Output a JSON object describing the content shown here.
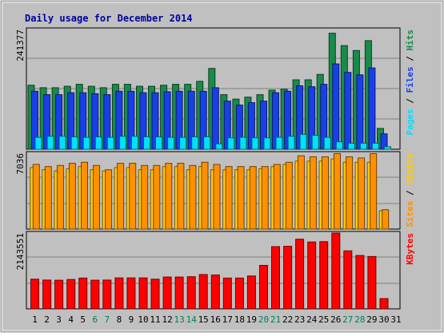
{
  "chart_data": {
    "type": "bar",
    "title": "Daily usage for December 2014",
    "categories": [
      "1",
      "2",
      "3",
      "4",
      "5",
      "6",
      "7",
      "8",
      "9",
      "10",
      "11",
      "12",
      "13",
      "14",
      "15",
      "16",
      "17",
      "18",
      "19",
      "20",
      "21",
      "22",
      "23",
      "24",
      "25",
      "26",
      "27",
      "28",
      "29",
      "30",
      "31"
    ],
    "weekend_days": [
      "6",
      "7",
      "13",
      "14",
      "20",
      "21",
      "27",
      "28"
    ],
    "panels": [
      {
        "id": "hits-files-pages",
        "ymax_label": "241377",
        "ymax": 241377,
        "legend": [
          {
            "text": "Pages",
            "color": "#00e0ff"
          },
          {
            "text": "Files",
            "color": "#1840e8"
          },
          {
            "text": "Hits",
            "color": "#1a8a4a"
          }
        ],
        "series": [
          {
            "name": "Hits",
            "color": "#1a8a4a",
            "values": [
              129000,
              124000,
              124000,
              127000,
              131000,
              127000,
              124000,
              131000,
              131000,
              127000,
              127000,
              129000,
              131000,
              131000,
              137000,
              163000,
              110000,
              101000,
              105000,
              110000,
              119000,
              121000,
              140000,
              140000,
              151000,
              234000,
              209000,
              199000,
              219000,
              42000,
              0
            ]
          },
          {
            "name": "Files",
            "color": "#1840e8",
            "values": [
              117000,
              110000,
              110000,
              114000,
              114000,
              112000,
              110000,
              117000,
              117000,
              114000,
              114000,
              116000,
              117000,
              117000,
              117000,
              124000,
              97000,
              89000,
              94000,
              97000,
              114000,
              117000,
              128000,
              126000,
              131000,
              172000,
              155000,
              150000,
              164000,
              31000,
              0
            ]
          },
          {
            "name": "Pages",
            "color": "#00e0ff",
            "values": [
              24000,
              26000,
              26000,
              25000,
              24000,
              25000,
              24000,
              26000,
              26000,
              25000,
              25000,
              24000,
              24000,
              25000,
              25000,
              11000,
              23000,
              24000,
              23000,
              23000,
              24000,
              26000,
              30000,
              28000,
              24000,
              15000,
              12000,
              12000,
              12000,
              5000,
              0
            ]
          }
        ]
      },
      {
        "id": "visits-sites",
        "ymax_label": "7036",
        "ymax": 7036,
        "legend": [
          {
            "text": "Sites",
            "color": "#ff9000"
          },
          {
            "text": "Visits",
            "color": "#ffcc00"
          }
        ],
        "series": [
          {
            "name": "Visits",
            "color": "#ffcc00",
            "values": [
              5700,
              5500,
              5400,
              5600,
              5800,
              5500,
              5400,
              5700,
              5700,
              5500,
              5500,
              5800,
              5800,
              5500,
              5800,
              5500,
              5500,
              5500,
              5500,
              5600,
              5800,
              6000,
              6300,
              6300,
              6300,
              6500,
              6200,
              6200,
              6200,
              1700,
              0
            ]
          },
          {
            "name": "Sites",
            "color": "#ff9000",
            "values": [
              6000,
              5800,
              5900,
              6100,
              6200,
              5900,
              5500,
              6100,
              6100,
              5900,
              5900,
              6100,
              6100,
              5900,
              6200,
              6000,
              5800,
              5800,
              5800,
              5800,
              6000,
              6200,
              6800,
              6700,
              6700,
              7000,
              6700,
              6600,
              7000,
              1800,
              0
            ]
          }
        ]
      },
      {
        "id": "kbytes",
        "ymax_label": "2143551",
        "ymax": 2143551,
        "legend": [
          {
            "text": "KBytes",
            "color": "#ff0000"
          }
        ],
        "series": [
          {
            "name": "KBytes",
            "color": "#ff0000",
            "values": [
              840000,
              815000,
              810000,
              830000,
              870000,
              810000,
              815000,
              875000,
              875000,
              875000,
              840000,
              900000,
              900000,
              910000,
              970000,
              960000,
              870000,
              870000,
              930000,
              1230000,
              1760000,
              1770000,
              1970000,
              1890000,
              1900000,
              2143551,
              1640000,
              1510000,
              1480000,
              290000,
              0
            ]
          }
        ]
      }
    ]
  }
}
